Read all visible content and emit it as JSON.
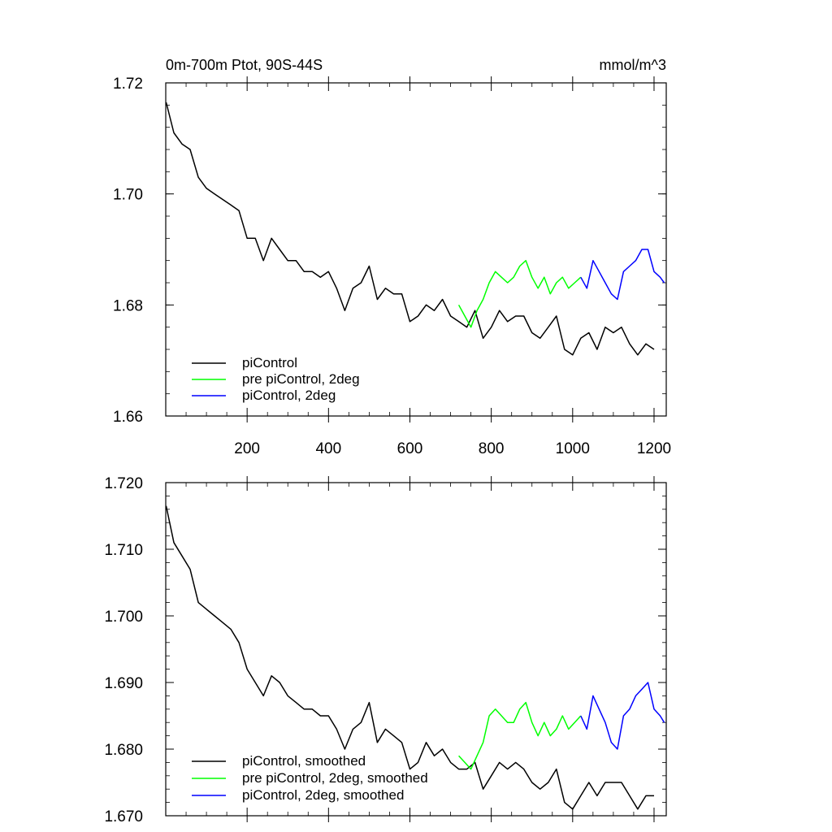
{
  "chart_data": [
    {
      "type": "line",
      "title": "0m-700m Ptot, 90S-44S",
      "units": "mmol/m^3",
      "xlim": [
        0,
        1230
      ],
      "ylim": [
        1.66,
        1.72
      ],
      "x_ticks": [
        200,
        400,
        600,
        800,
        1000,
        1200
      ],
      "x_tick_labels": [
        "200",
        "400",
        "600",
        "800",
        "1000",
        "1200"
      ],
      "y_ticks": [
        1.66,
        1.68,
        1.7,
        1.72
      ],
      "y_tick_labels": [
        "1.66",
        "1.68",
        "1.70",
        "1.72"
      ],
      "legend_position": "bottom-left",
      "series": [
        {
          "name": "piControl",
          "color": "#000000",
          "x": [
            1,
            20,
            40,
            60,
            80,
            100,
            120,
            140,
            160,
            180,
            200,
            220,
            240,
            260,
            280,
            300,
            320,
            340,
            360,
            380,
            400,
            420,
            440,
            460,
            480,
            500,
            520,
            540,
            560,
            580,
            600,
            620,
            640,
            660,
            680,
            700,
            720,
            740,
            760,
            780,
            800,
            820,
            840,
            860,
            880,
            900,
            920,
            940,
            960,
            980,
            1000,
            1020,
            1040,
            1060,
            1080,
            1100,
            1120,
            1140,
            1160,
            1180,
            1200
          ],
          "values": [
            1.7165,
            1.711,
            1.709,
            1.708,
            1.703,
            1.701,
            1.7,
            1.699,
            1.698,
            1.697,
            1.692,
            1.692,
            1.688,
            1.692,
            1.69,
            1.688,
            1.688,
            1.686,
            1.686,
            1.685,
            1.686,
            1.683,
            1.679,
            1.683,
            1.684,
            1.687,
            1.681,
            1.683,
            1.682,
            1.682,
            1.677,
            1.678,
            1.68,
            1.679,
            1.681,
            1.678,
            1.677,
            1.676,
            1.679,
            1.674,
            1.676,
            1.679,
            1.677,
            1.678,
            1.678,
            1.675,
            1.674,
            1.676,
            1.678,
            1.672,
            1.671,
            1.674,
            1.675,
            1.672,
            1.676,
            1.675,
            1.676,
            1.673,
            1.671,
            1.673,
            1.672
          ]
        },
        {
          "name": "pre piControl, 2deg",
          "color": "#00ff00",
          "x": [
            720,
            735,
            750,
            765,
            780,
            795,
            810,
            825,
            840,
            855,
            870,
            885,
            900,
            915,
            930,
            945,
            960,
            975,
            990,
            1005,
            1020
          ],
          "values": [
            1.68,
            1.678,
            1.676,
            1.679,
            1.681,
            1.684,
            1.686,
            1.685,
            1.684,
            1.685,
            1.687,
            1.688,
            1.685,
            1.683,
            1.685,
            1.682,
            1.684,
            1.685,
            1.683,
            1.684,
            1.685
          ]
        },
        {
          "name": "piControl, 2deg",
          "color": "#0000ff",
          "x": [
            1020,
            1035,
            1050,
            1065,
            1080,
            1095,
            1110,
            1125,
            1140,
            1155,
            1170,
            1185,
            1200,
            1215,
            1225
          ],
          "values": [
            1.685,
            1.683,
            1.688,
            1.686,
            1.684,
            1.682,
            1.681,
            1.686,
            1.687,
            1.688,
            1.69,
            1.69,
            1.686,
            1.685,
            1.684
          ]
        }
      ]
    },
    {
      "type": "line",
      "xlim": [
        0,
        1230
      ],
      "ylim": [
        1.67,
        1.72
      ],
      "y_ticks": [
        1.67,
        1.68,
        1.69,
        1.7,
        1.71,
        1.72
      ],
      "y_tick_labels": [
        "1.670",
        "1.680",
        "1.690",
        "1.700",
        "1.710",
        "1.720"
      ],
      "x_ticks": [
        200,
        400,
        600,
        800,
        1000,
        1200
      ],
      "legend_position": "bottom-left",
      "series": [
        {
          "name": "piControl, smoothed",
          "color": "#000000",
          "x": [
            1,
            20,
            40,
            60,
            80,
            100,
            120,
            140,
            160,
            180,
            200,
            220,
            240,
            260,
            280,
            300,
            320,
            340,
            360,
            380,
            400,
            420,
            440,
            460,
            480,
            500,
            520,
            540,
            560,
            580,
            600,
            620,
            640,
            660,
            680,
            700,
            720,
            740,
            760,
            780,
            800,
            820,
            840,
            860,
            880,
            900,
            920,
            940,
            960,
            980,
            1000,
            1020,
            1040,
            1060,
            1080,
            1100,
            1120,
            1140,
            1160,
            1180,
            1200
          ],
          "values": [
            1.7165,
            1.711,
            1.709,
            1.707,
            1.702,
            1.701,
            1.7,
            1.699,
            1.698,
            1.696,
            1.692,
            1.69,
            1.688,
            1.691,
            1.69,
            1.688,
            1.687,
            1.686,
            1.686,
            1.685,
            1.685,
            1.683,
            1.68,
            1.683,
            1.684,
            1.687,
            1.681,
            1.683,
            1.682,
            1.681,
            1.677,
            1.678,
            1.681,
            1.679,
            1.68,
            1.678,
            1.677,
            1.677,
            1.678,
            1.674,
            1.676,
            1.678,
            1.677,
            1.678,
            1.677,
            1.675,
            1.674,
            1.675,
            1.677,
            1.672,
            1.671,
            1.673,
            1.675,
            1.673,
            1.675,
            1.675,
            1.675,
            1.673,
            1.671,
            1.673,
            1.673
          ]
        },
        {
          "name": "pre piControl, 2deg, smoothed",
          "color": "#00ff00",
          "x": [
            720,
            735,
            750,
            765,
            780,
            795,
            810,
            825,
            840,
            855,
            870,
            885,
            900,
            915,
            930,
            945,
            960,
            975,
            990,
            1005,
            1020
          ],
          "values": [
            1.679,
            1.678,
            1.677,
            1.679,
            1.681,
            1.685,
            1.686,
            1.685,
            1.684,
            1.684,
            1.686,
            1.687,
            1.684,
            1.682,
            1.684,
            1.682,
            1.683,
            1.685,
            1.683,
            1.684,
            1.685
          ]
        },
        {
          "name": "piControl, 2deg, smoothed",
          "color": "#0000ff",
          "x": [
            1020,
            1035,
            1050,
            1065,
            1080,
            1095,
            1110,
            1125,
            1140,
            1155,
            1170,
            1185,
            1200,
            1215,
            1225
          ],
          "values": [
            1.685,
            1.683,
            1.688,
            1.686,
            1.684,
            1.681,
            1.68,
            1.685,
            1.686,
            1.688,
            1.689,
            1.69,
            1.686,
            1.685,
            1.684
          ]
        }
      ]
    }
  ]
}
